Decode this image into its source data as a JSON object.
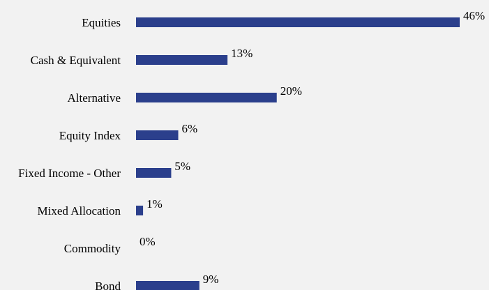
{
  "chart_data": {
    "type": "bar",
    "orientation": "horizontal",
    "categories": [
      "Equities",
      "Cash & Equivalent",
      "Alternative",
      "Equity Index",
      "Fixed Income - Other",
      "Mixed Allocation",
      "Commodity",
      "Bond"
    ],
    "values": [
      46,
      13,
      20,
      6,
      5,
      1,
      0,
      9
    ],
    "value_labels": [
      "46%",
      "13%",
      "20%",
      "6%",
      "5%",
      "1%",
      "0%",
      "9%"
    ],
    "unit": "%",
    "title": "",
    "xlabel": "",
    "ylabel": "",
    "xlim": [
      0,
      46
    ],
    "grid": false,
    "legend": "none",
    "bar_color": "#2b3f8c",
    "background": "#f2f2f2"
  }
}
